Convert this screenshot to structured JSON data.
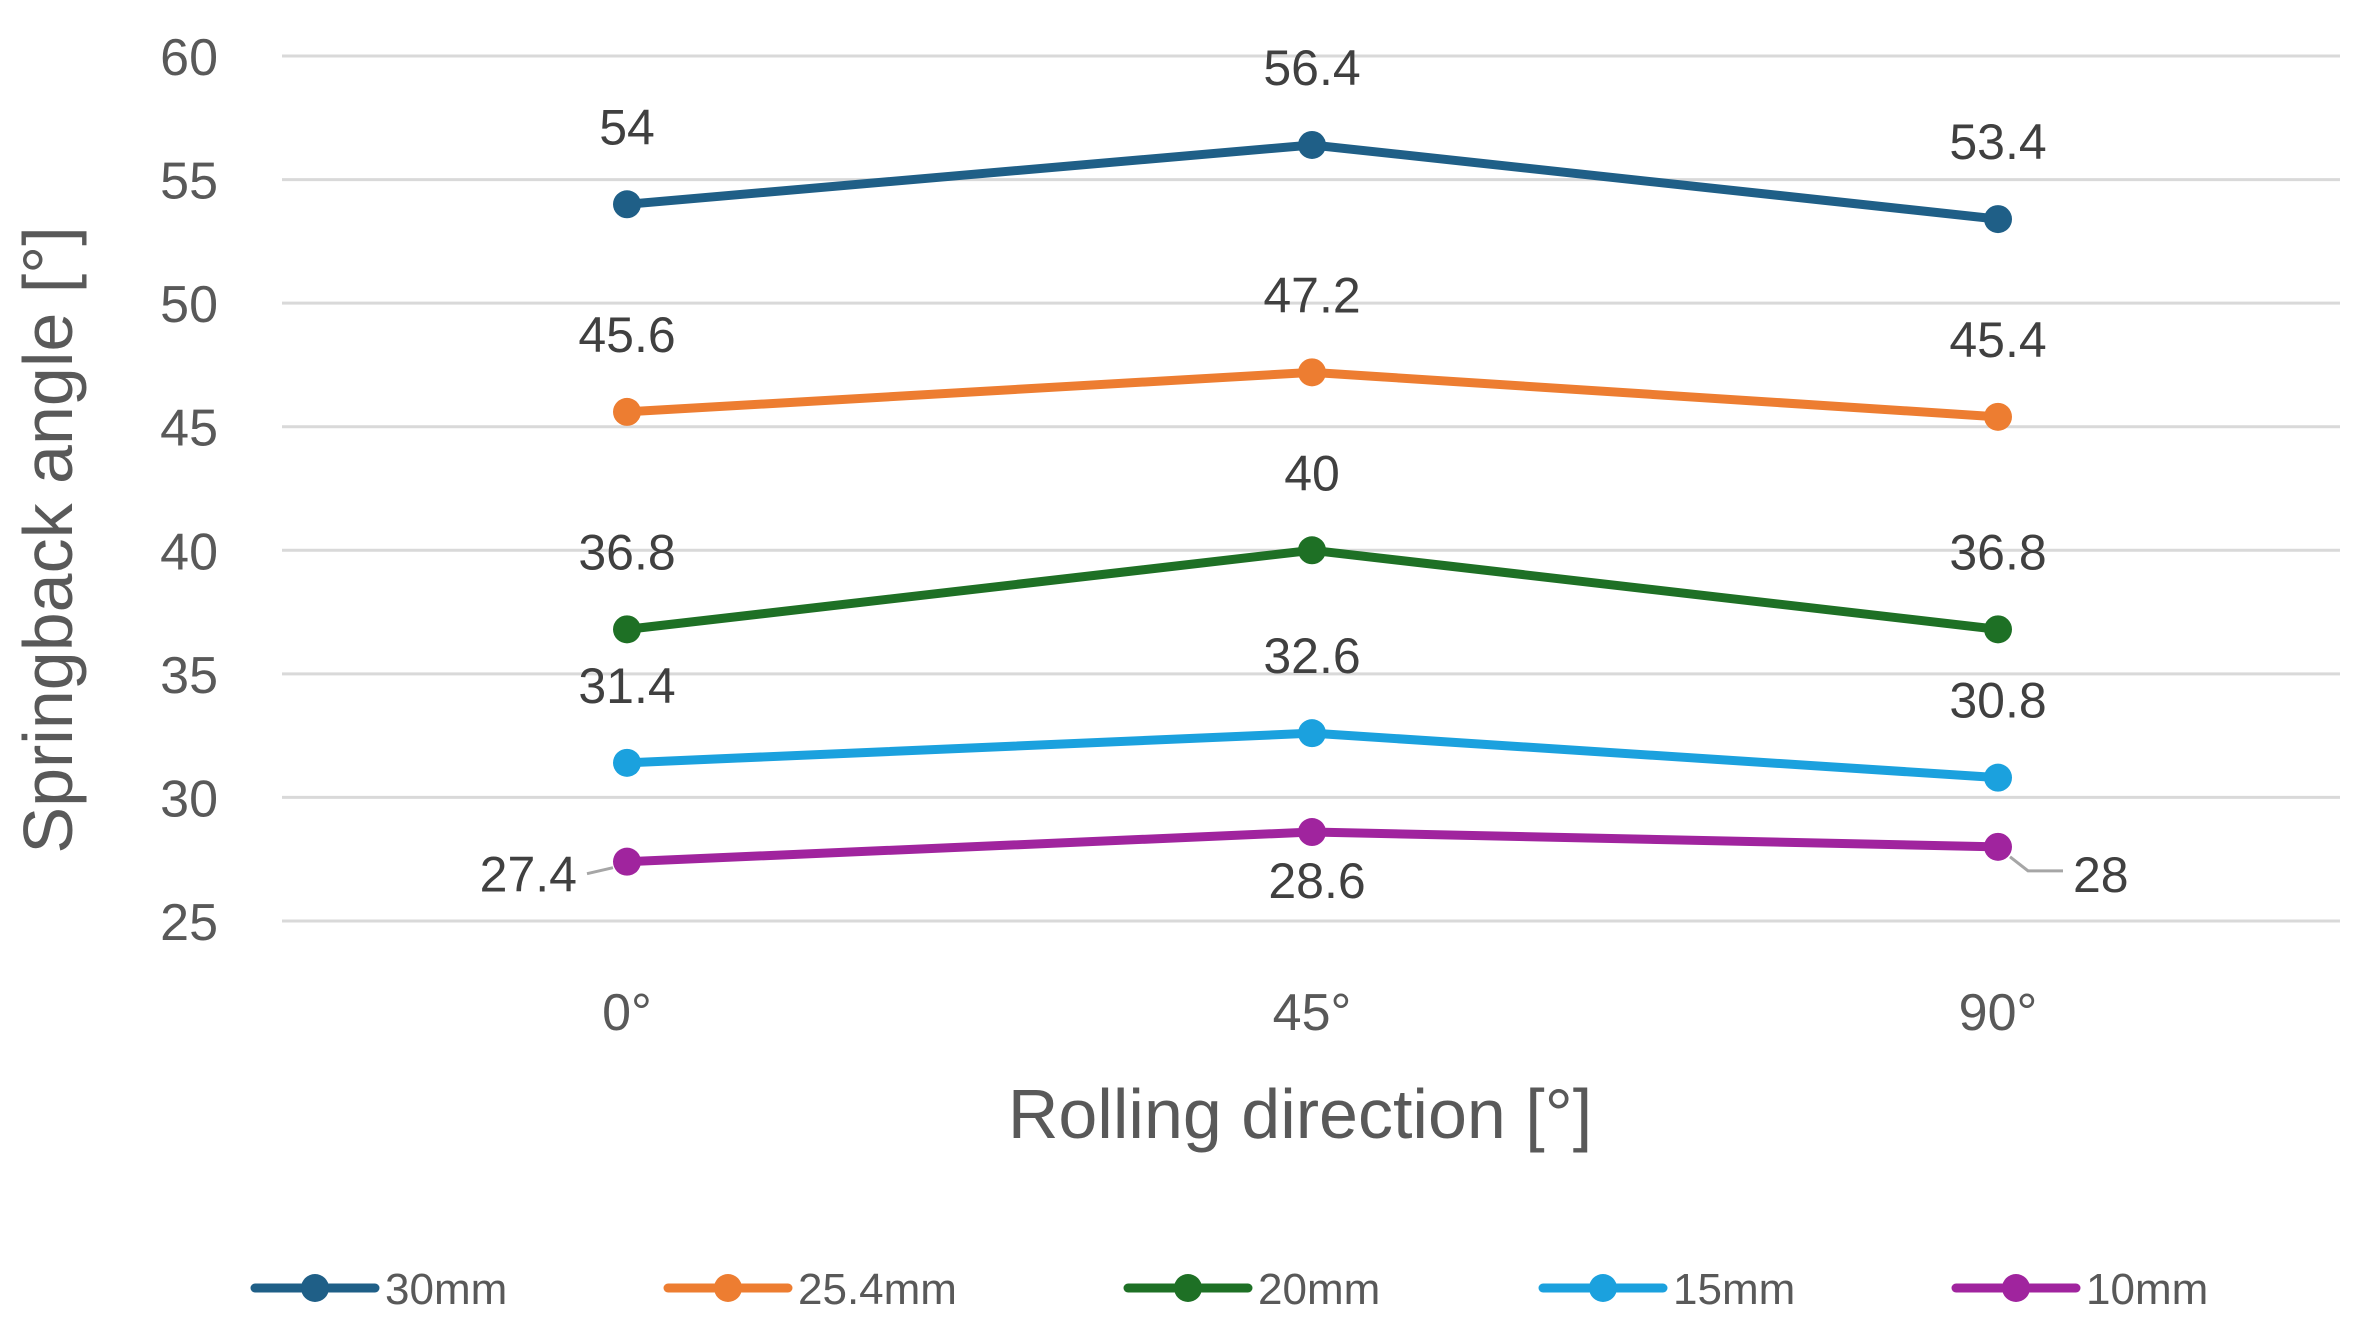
{
  "chart_data": {
    "type": "line",
    "title": "",
    "xlabel": "Rolling direction [°]",
    "ylabel": "Springback angle [°]",
    "categories": [
      "0°",
      "45°",
      "90°"
    ],
    "ylim": [
      25,
      60
    ],
    "yticks": [
      "25",
      "30",
      "35",
      "40",
      "45",
      "50",
      "55",
      "60"
    ],
    "grid": true,
    "legend_position": "bottom",
    "series": [
      {
        "name": "30mm",
        "color": "#1F5F87",
        "values": [
          54,
          56.4,
          53.4
        ],
        "labels": [
          "54",
          "56.4",
          "53.4"
        ]
      },
      {
        "name": "25.4mm",
        "color": "#ED7D31",
        "values": [
          45.6,
          47.2,
          45.4
        ],
        "labels": [
          "45.6",
          "47.2",
          "45.4"
        ]
      },
      {
        "name": "20mm",
        "color": "#1E7025",
        "values": [
          36.8,
          40,
          36.8
        ],
        "labels": [
          "36.8",
          "40",
          "36.8"
        ]
      },
      {
        "name": "15mm",
        "color": "#1BA1DE",
        "values": [
          31.4,
          32.6,
          30.8
        ],
        "labels": [
          "31.4",
          "32.6",
          "30.8"
        ]
      },
      {
        "name": "10mm",
        "color": "#A0249E",
        "values": [
          27.4,
          28.6,
          28
        ],
        "labels": [
          "27.4",
          "28.6",
          "28"
        ]
      }
    ]
  }
}
